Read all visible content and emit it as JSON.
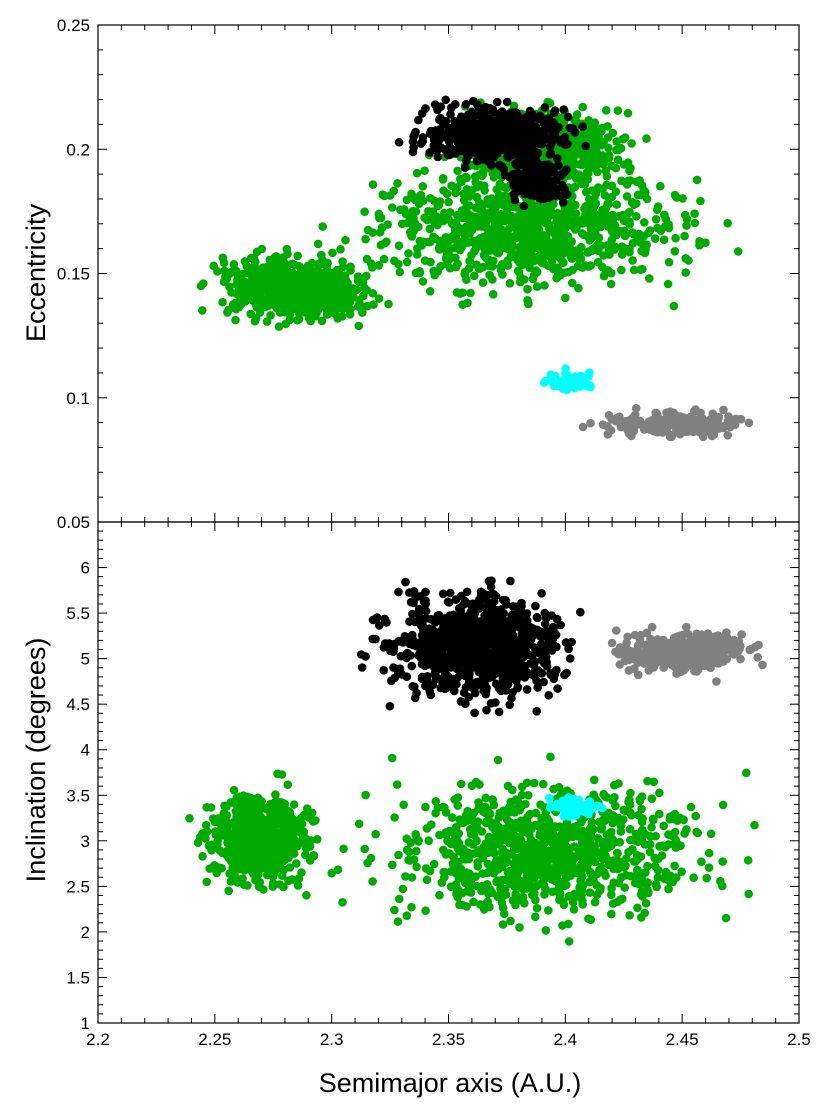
{
  "chart_data": [
    {
      "type": "scatter",
      "panel": "top",
      "title": "",
      "xlabel": "",
      "ylabel": "Eccentricity",
      "xlim": [
        2.2,
        2.5
      ],
      "ylim": [
        0.05,
        0.25
      ],
      "xticks": [
        "2.2",
        "2.25",
        "2.3",
        "2.35",
        "2.4",
        "2.45",
        "2.5"
      ],
      "yticks": [
        "0.05",
        "0.1",
        "0.15",
        "0.2",
        "0.25"
      ],
      "yticks_values": [
        0.05,
        0.1,
        0.15,
        0.2,
        0.25
      ],
      "grid": false,
      "series": [
        {
          "color": "#00aa00",
          "clusters": [
            {
              "x": [
                2.237,
                2.33
              ],
              "y": [
                0.126,
                0.162
              ]
            },
            {
              "x": [
                2.29,
                2.48
              ],
              "y": [
                0.135,
                0.2
              ]
            },
            {
              "x": [
                2.34,
                2.44
              ],
              "y": [
                0.18,
                0.222
              ]
            }
          ]
        },
        {
          "color": "#000000",
          "clusters": [
            {
              "x": [
                2.325,
                2.415
              ],
              "y": [
                0.19,
                0.221
              ]
            },
            {
              "x": [
                2.37,
                2.405
              ],
              "y": [
                0.175,
                0.2
              ]
            }
          ]
        },
        {
          "color": "#00ffff",
          "clusters": [
            {
              "x": [
                2.385,
                2.418
              ],
              "y": [
                0.101,
                0.112
              ]
            }
          ]
        },
        {
          "color": "#808080",
          "clusters": [
            {
              "x": [
                2.403,
                2.488
              ],
              "y": [
                0.083,
                0.097
              ]
            }
          ]
        }
      ]
    },
    {
      "type": "scatter",
      "panel": "bottom",
      "title": "",
      "xlabel": "Semimajor axis (A.U.)",
      "ylabel": "Inclination (degrees)",
      "xlim": [
        2.2,
        2.5
      ],
      "ylim": [
        1,
        6.5
      ],
      "xticks": [
        "2.2",
        "2.25",
        "2.3",
        "2.35",
        "2.4",
        "2.45",
        "2.5"
      ],
      "xticks_values": [
        2.2,
        2.25,
        2.3,
        2.35,
        2.4,
        2.45,
        2.5
      ],
      "yticks": [
        "1",
        "1.5",
        "2",
        "2.5",
        "3",
        "3.5",
        "4",
        "4.5",
        "5",
        "5.5",
        "6"
      ],
      "yticks_values": [
        1,
        1.5,
        2,
        2.5,
        3,
        3.5,
        4,
        4.5,
        5,
        5.5,
        6
      ],
      "grid": false,
      "series": [
        {
          "color": "#00aa00",
          "clusters": [
            {
              "x": [
                2.237,
                2.3
              ],
              "y": [
                2.3,
                3.75
              ]
            },
            {
              "x": [
                2.3,
                2.485
              ],
              "y": [
                1.82,
                3.95
              ]
            }
          ]
        },
        {
          "color": "#000000",
          "clusters": [
            {
              "x": [
                2.308,
                2.415
              ],
              "y": [
                4.32,
                5.95
              ]
            }
          ]
        },
        {
          "color": "#808080",
          "clusters": [
            {
              "x": [
                2.41,
                2.49
              ],
              "y": [
                4.75,
                5.4
              ]
            }
          ]
        },
        {
          "color": "#00ffff",
          "clusters": [
            {
              "x": [
                2.39,
                2.418
              ],
              "y": [
                3.2,
                3.52
              ]
            }
          ]
        }
      ]
    }
  ]
}
